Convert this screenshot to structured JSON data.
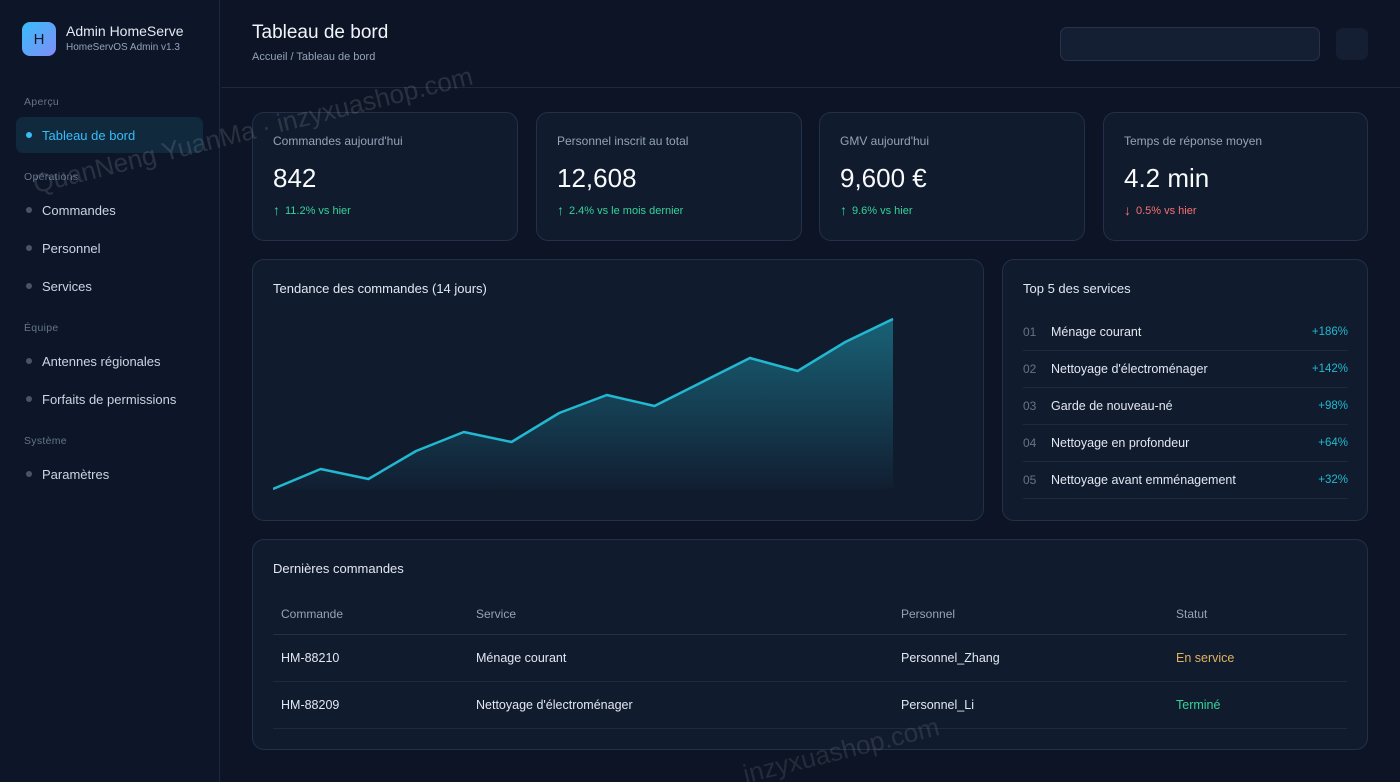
{
  "brand": {
    "logo_letter": "H",
    "title": "Admin HomeServe",
    "subtitle": "HomeServOS Admin v1.3"
  },
  "sidebar": {
    "sections": [
      {
        "label": "Aperçu",
        "items": [
          {
            "label": "Tableau de bord",
            "active": true
          }
        ]
      },
      {
        "label": "Opérations",
        "items": [
          {
            "label": "Commandes"
          },
          {
            "label": "Personnel"
          },
          {
            "label": "Services"
          }
        ]
      },
      {
        "label": "Équipe",
        "items": [
          {
            "label": "Antennes régionales"
          },
          {
            "label": "Forfaits de permissions"
          }
        ]
      },
      {
        "label": "Système",
        "items": [
          {
            "label": "Paramètres"
          }
        ]
      }
    ]
  },
  "header": {
    "title": "Tableau de bord",
    "breadcrumb": "Accueil / Tableau de bord",
    "search_value": ""
  },
  "kpis": [
    {
      "label": "Commandes aujourd'hui",
      "value": "842",
      "arrow": "↑",
      "delta": "11.2% vs hier",
      "trend": "up"
    },
    {
      "label": "Personnel inscrit au total",
      "value": "12,608",
      "arrow": "↑",
      "delta": "2.4% vs le mois dernier",
      "trend": "up"
    },
    {
      "label": "GMV aujourd'hui",
      "value": "9,600 €",
      "arrow": "↑",
      "delta": "9.6% vs hier",
      "trend": "up"
    },
    {
      "label": "Temps de réponse moyen",
      "value": "4.2 min",
      "arrow": "↓",
      "delta": "0.5% vs hier",
      "trend": "down"
    }
  ],
  "trend_card": {
    "title": "Tendance des commandes (14 jours)"
  },
  "chart_data": {
    "type": "area",
    "title": "Tendance des commandes (14 jours)",
    "xlabel": "",
    "ylabel": "",
    "x": [
      1,
      2,
      3,
      4,
      5,
      6,
      7,
      8,
      9,
      10,
      11,
      12,
      13,
      14
    ],
    "values": [
      0,
      20,
      10,
      38,
      57,
      47,
      76,
      94,
      83,
      107,
      131,
      118,
      147,
      170
    ],
    "ylim": [
      0,
      170
    ],
    "grid": false,
    "color": "#22b8cf"
  },
  "top_services": {
    "title": "Top 5 des services",
    "items": [
      {
        "rank": "01",
        "name": "Ménage courant",
        "growth": "+186%"
      },
      {
        "rank": "02",
        "name": "Nettoyage d'électroménager",
        "growth": "+142%"
      },
      {
        "rank": "03",
        "name": "Garde de nouveau-né",
        "growth": "+98%"
      },
      {
        "rank": "04",
        "name": "Nettoyage en profondeur",
        "growth": "+64%"
      },
      {
        "rank": "05",
        "name": "Nettoyage avant emménagement",
        "growth": "+32%"
      }
    ]
  },
  "orders": {
    "title": "Dernières commandes",
    "columns": [
      "Commande",
      "Service",
      "Personnel",
      "Statut"
    ],
    "rows": [
      {
        "id": "HM-88210",
        "service": "Ménage courant",
        "staff": "Personnel_Zhang",
        "status": "En service",
        "status_color": "#e0b25e"
      },
      {
        "id": "HM-88209",
        "service": "Nettoyage d'électroménager",
        "staff": "Personnel_Li",
        "status": "Terminé",
        "status_color": "#34d399"
      }
    ]
  },
  "colors": {
    "accent": "#38bdf8",
    "up": "#34d399",
    "down": "#f87171",
    "line": "#22b8cf"
  },
  "watermark": {
    "text1": "QuanNeng YuanMa · inzyxuashop.com",
    "text2": "inzyxuashop.com"
  }
}
